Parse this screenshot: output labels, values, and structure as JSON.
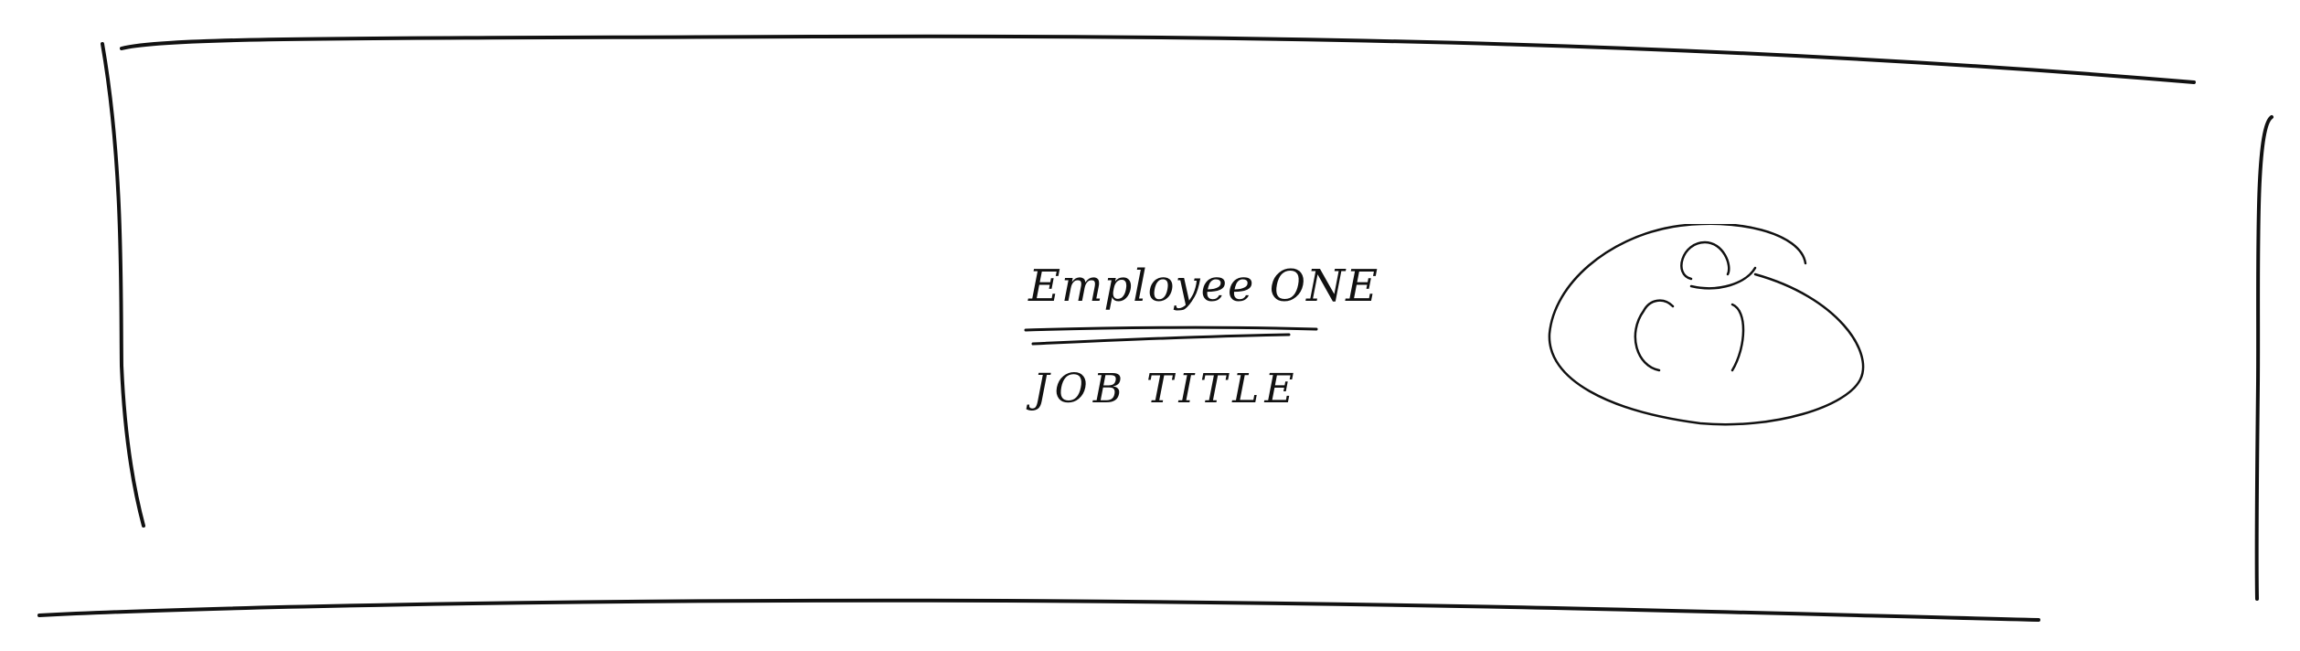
{
  "card": {
    "name": "Employee ONE",
    "job_title": "JOB TITLE"
  },
  "avatar": {
    "icon": "user-silhouette-icon"
  },
  "colors": {
    "ink": "#111111",
    "background": "#ffffff"
  }
}
